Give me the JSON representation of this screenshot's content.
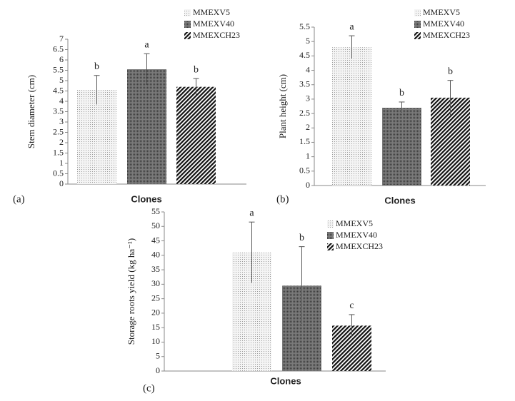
{
  "chart_data": [
    {
      "type": "bar",
      "panel_label": "(a)",
      "x_label": "Clones",
      "y_label": "Stem diameter (cm)",
      "categories": [
        null
      ],
      "ylim": [
        0,
        7
      ],
      "yticks": [
        0,
        0.5,
        1,
        1.5,
        2,
        2.5,
        3,
        3.5,
        4,
        4.5,
        5,
        5.5,
        6,
        6.5,
        7
      ],
      "series": [
        {
          "name": "MMEXV5",
          "pattern": "dots",
          "values": [
            4.55
          ],
          "errors": [
            0.7
          ],
          "annotations": [
            "b"
          ]
        },
        {
          "name": "MMEXV40",
          "pattern": "dense",
          "values": [
            5.55
          ],
          "errors": [
            0.75
          ],
          "annotations": [
            "a"
          ]
        },
        {
          "name": "MMEXCH23",
          "pattern": "diag",
          "values": [
            4.7
          ],
          "errors": [
            0.4
          ],
          "annotations": [
            "b"
          ]
        }
      ]
    },
    {
      "type": "bar",
      "panel_label": "(b)",
      "x_label": "Clones",
      "y_label": "Plant height (cm)",
      "categories": [
        null
      ],
      "ylim": [
        0,
        5.5
      ],
      "yticks": [
        0,
        0.5,
        1,
        1.5,
        2,
        2.5,
        3,
        3.5,
        4,
        4.5,
        5,
        5.5
      ],
      "series": [
        {
          "name": "MMEXV5",
          "pattern": "dots",
          "values": [
            4.8
          ],
          "errors": [
            0.4
          ],
          "annotations": [
            "a"
          ]
        },
        {
          "name": "MMEXV40",
          "pattern": "dense",
          "values": [
            2.7
          ],
          "errors": [
            0.2
          ],
          "annotations": [
            "b"
          ]
        },
        {
          "name": "MMEXCH23",
          "pattern": "diag",
          "values": [
            3.05
          ],
          "errors": [
            0.6
          ],
          "annotations": [
            "b"
          ]
        }
      ]
    },
    {
      "type": "bar",
      "panel_label": "(c)",
      "x_label": "Clones",
      "y_label": "Storage roots yield (kg ha⁻¹)",
      "categories": [
        null
      ],
      "ylim": [
        0,
        55
      ],
      "yticks": [
        0,
        5,
        10,
        15,
        20,
        25,
        30,
        35,
        40,
        45,
        50,
        55
      ],
      "series": [
        {
          "name": "MMEXV5",
          "pattern": "dots",
          "values": [
            41
          ],
          "errors": [
            10.5
          ],
          "annotations": [
            "a"
          ]
        },
        {
          "name": "MMEXV40",
          "pattern": "dense",
          "values": [
            29.5
          ],
          "errors": [
            13.5
          ],
          "annotations": [
            "b"
          ]
        },
        {
          "name": "MMEXCH23",
          "pattern": "diag",
          "values": [
            15.7
          ],
          "errors": [
            3.8
          ],
          "annotations": [
            "c"
          ]
        }
      ]
    }
  ]
}
